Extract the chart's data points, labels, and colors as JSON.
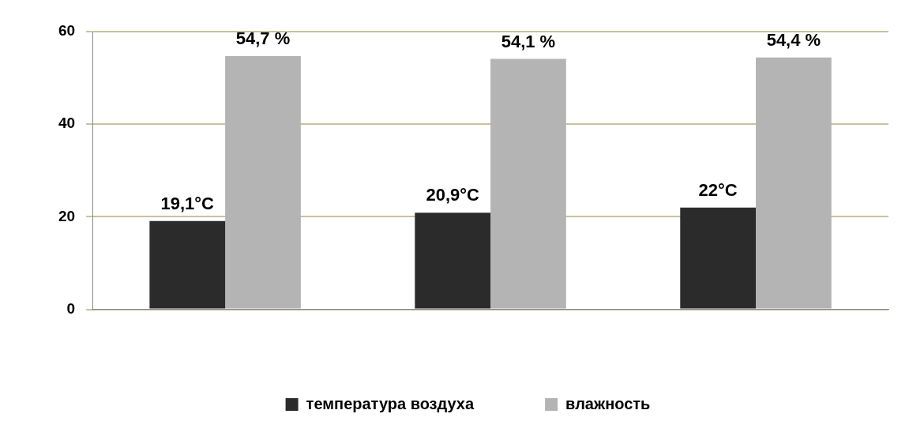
{
  "chart_data": {
    "type": "bar",
    "categories": [
      null,
      null,
      null
    ],
    "series": [
      {
        "name": "температура воздуха",
        "color": "#2b2b2b",
        "values": [
          19.1,
          20.9,
          22
        ],
        "value_labels": [
          "19,1°C",
          "20,9°C",
          "22°C"
        ]
      },
      {
        "name": "влажность",
        "color": "#b4b4b4",
        "values": [
          54.7,
          54.1,
          54.4
        ],
        "value_labels": [
          "54,7 %",
          "54,1 %",
          "54,4 %"
        ]
      }
    ],
    "ylim": [
      0,
      60
    ],
    "yticks": [
      0,
      20,
      40,
      60
    ],
    "grid": "y",
    "legend": "bottom"
  }
}
